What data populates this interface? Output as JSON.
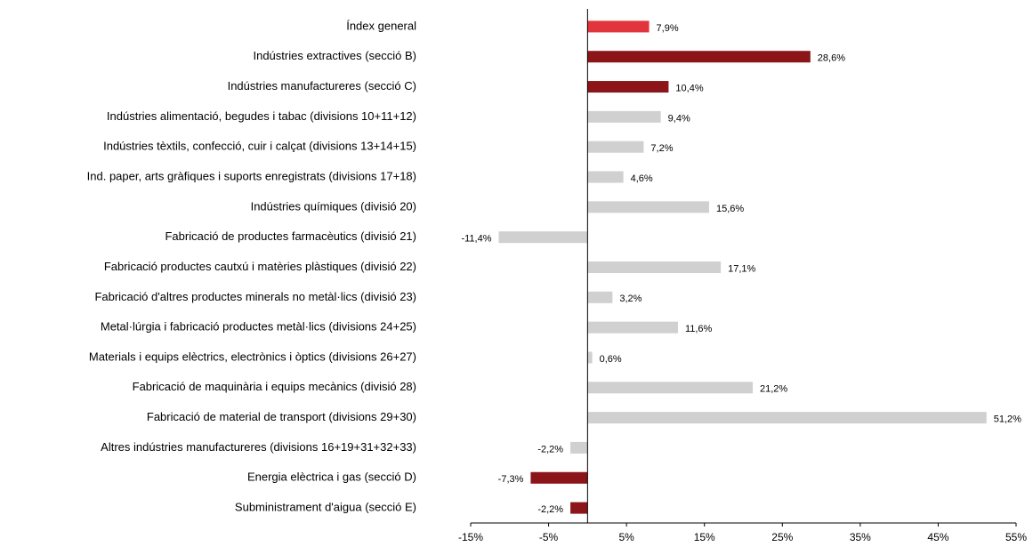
{
  "chart_data": {
    "type": "bar",
    "orientation": "horizontal",
    "categories": [
      "Índex general",
      "Indústries extractives (secció B)",
      "Indústries manufactureres (secció C)",
      "Indústries alimentació, begudes i tabac (divisions 10+11+12)",
      "Indústries tèxtils, confecció, cuir i calçat (divisions 13+14+15)",
      "Ind. paper, arts gràfiques i suports enregistrats (divisions 17+18)",
      "Indústries químiques (divisió 20)",
      "Fabricació de productes farmacèutics (divisió 21)",
      "Fabricació productes cautxú i matèries plàstiques (divisió 22)",
      "Fabricació d'altres productes minerals no metàl·lics (divisió 23)",
      "Metal·lúrgia i fabricació productes metàl·lics (divisions 24+25)",
      "Materials i equips elèctrics, electrònics i òptics (divisions 26+27)",
      "Fabricació de maquinària i equips mecànics (divisió 28)",
      "Fabricació de material de transport (divisions 29+30)",
      "Altres indústries manufactureres (divisions 16+19+31+32+33)",
      "Energia elèctrica i gas (secció D)",
      "Subministrament d'aigua (secció E)"
    ],
    "values": [
      7.9,
      28.6,
      10.4,
      9.4,
      7.2,
      4.6,
      15.6,
      -11.4,
      17.1,
      3.2,
      11.6,
      0.6,
      21.2,
      51.2,
      -2.2,
      -7.3,
      -2.2
    ],
    "value_labels": [
      "7,9%",
      "28,6%",
      "10,4%",
      "9,4%",
      "7,2%",
      "4,6%",
      "15,6%",
      "-11,4%",
      "17,1%",
      "3,2%",
      "11,6%",
      "0,6%",
      "21,2%",
      "51,2%",
      "-2,2%",
      "-7,3%",
      "-2,2%"
    ],
    "colors": [
      "#e2343c",
      "#8b1518",
      "#8b1518",
      "#d0d0d0",
      "#d0d0d0",
      "#d0d0d0",
      "#d0d0d0",
      "#d0d0d0",
      "#d0d0d0",
      "#d0d0d0",
      "#d0d0d0",
      "#d0d0d0",
      "#d0d0d0",
      "#d0d0d0",
      "#d0d0d0",
      "#8b1518",
      "#8b1518"
    ],
    "xlim": [
      -15,
      55
    ],
    "xticks": [
      {
        "value": -15,
        "label": "-15%"
      },
      {
        "value": -5,
        "label": "-5%"
      },
      {
        "value": 5,
        "label": "5%"
      },
      {
        "value": 15,
        "label": "15%"
      },
      {
        "value": 25,
        "label": "25%"
      },
      {
        "value": 35,
        "label": "35%"
      },
      {
        "value": 45,
        "label": "45%"
      },
      {
        "value": 55,
        "label": "55%"
      }
    ]
  }
}
